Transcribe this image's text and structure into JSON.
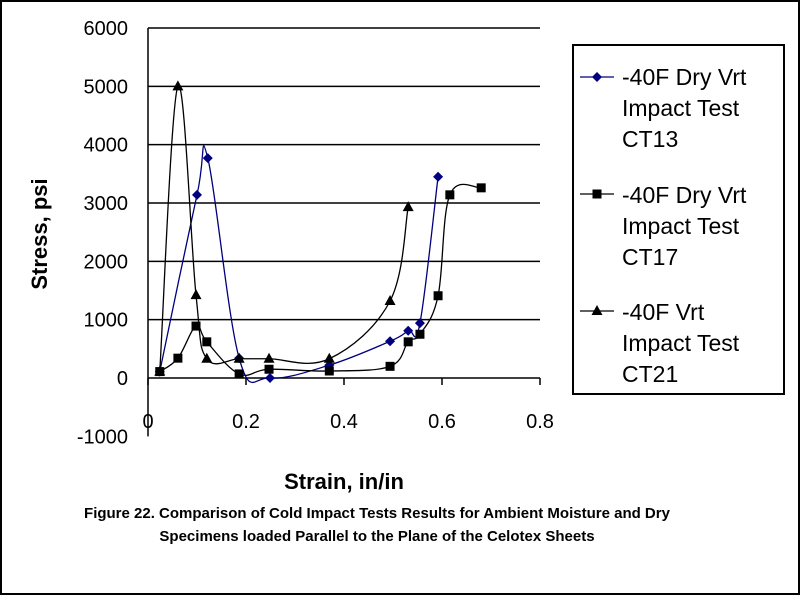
{
  "chart_data": {
    "type": "scatter",
    "title": "",
    "xlabel": "Strain, in/in",
    "ylabel": "Stress, psi",
    "xlim": [
      0,
      0.8
    ],
    "ylim": [
      -1000,
      6000
    ],
    "xticks": [
      "0",
      "0.2",
      "0.4",
      "0.6",
      "0.8"
    ],
    "yticks": [
      "-1000",
      "0",
      "1000",
      "2000",
      "3000",
      "4000",
      "5000",
      "6000"
    ],
    "grid": "horizontal",
    "legend_position": "right",
    "series": [
      {
        "name": "-40F Dry Vrt Impact Test CT13",
        "marker": "diamond",
        "color": "#000080",
        "x": [
          0.024,
          0.1,
          0.122,
          0.186,
          0.249,
          0.37,
          0.494,
          0.531,
          0.555,
          0.592
        ],
        "y": [
          110,
          3140,
          3770,
          340,
          0,
          220,
          630,
          810,
          940,
          3450
        ]
      },
      {
        "name": "-40F Dry Vrt Impact Test CT17",
        "marker": "square",
        "color": "#000000",
        "x": [
          0.024,
          0.061,
          0.098,
          0.12,
          0.186,
          0.247,
          0.37,
          0.494,
          0.531,
          0.555,
          0.592,
          0.616,
          0.68
        ],
        "y": [
          110,
          340,
          890,
          620,
          70,
          150,
          120,
          200,
          620,
          750,
          1410,
          3140,
          3260
        ]
      },
      {
        "name": "-40F Vrt Impact Test CT21",
        "marker": "triangle",
        "color": "#000000",
        "x": [
          0.024,
          0.061,
          0.098,
          0.12,
          0.186,
          0.247,
          0.37,
          0.494,
          0.531
        ],
        "y": [
          110,
          5000,
          1420,
          330,
          330,
          330,
          330,
          1320,
          2930
        ]
      }
    ]
  },
  "legend": [
    "-40F Dry Vrt\nImpact Test\nCT13",
    "-40F Dry Vrt\nImpact Test\nCT17",
    "-40F Vrt\nImpact Test\nCT21"
  ],
  "caption": "Figure 22.  Comparison of Cold Impact Tests Results for Ambient Moisture and Dry Specimens loaded Parallel to the Plane of the Celotex Sheets"
}
